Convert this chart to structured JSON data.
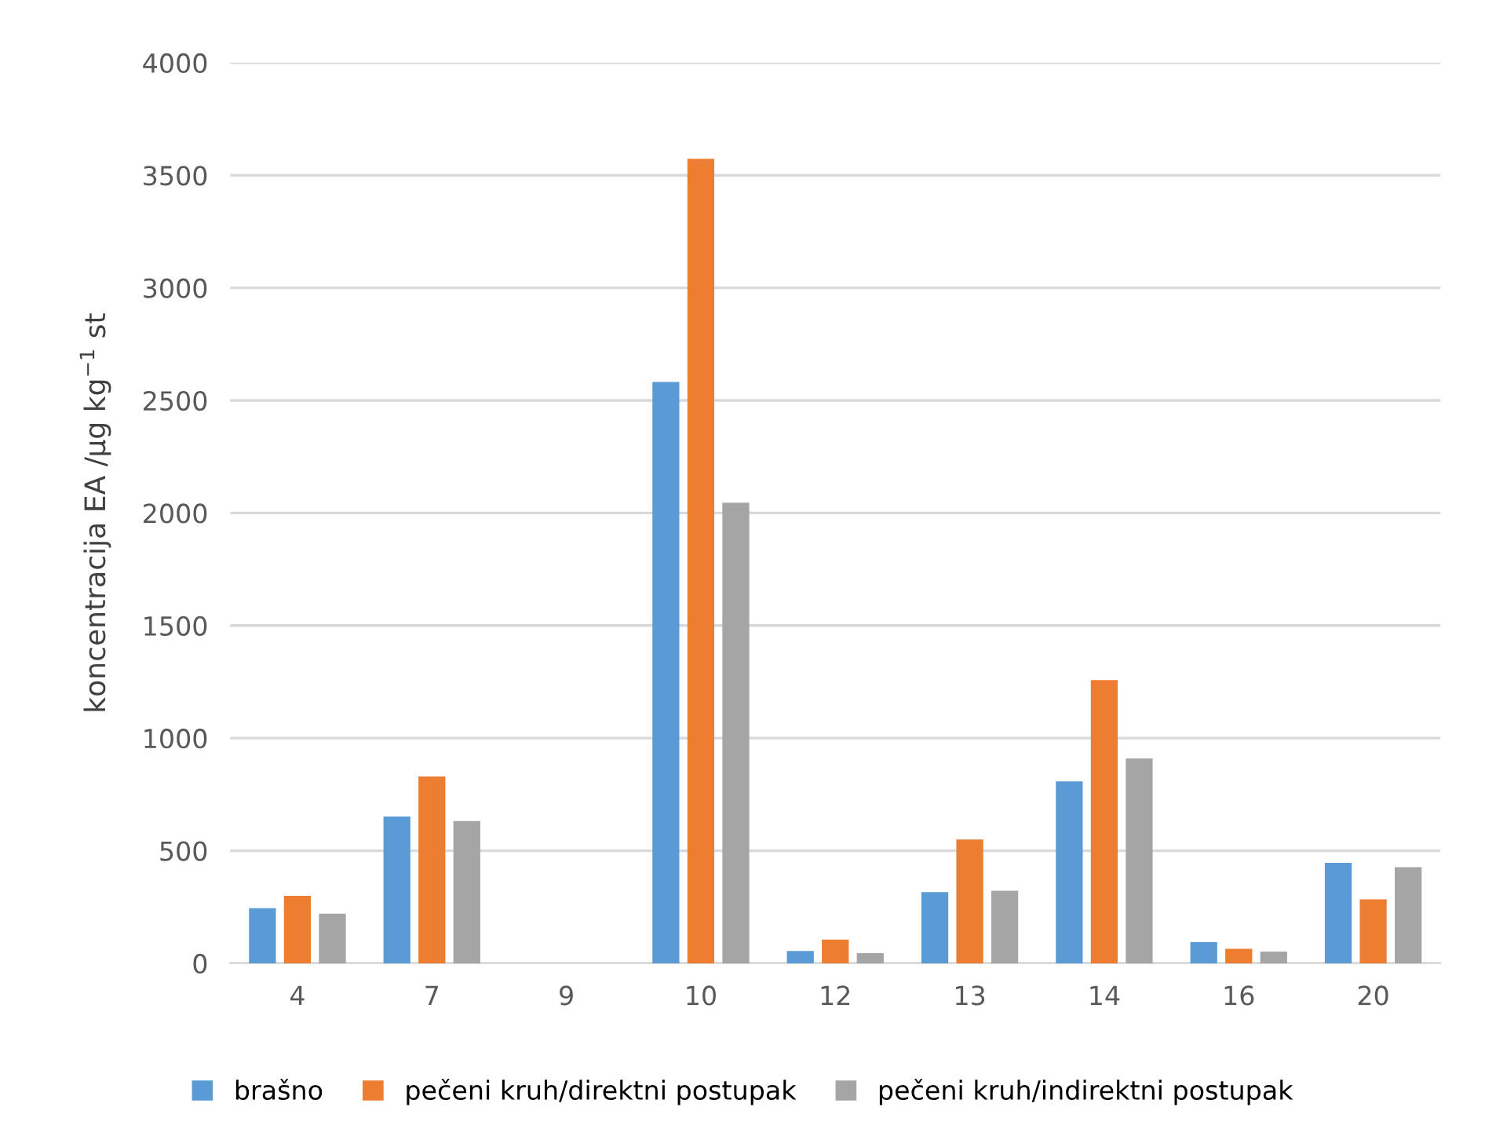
{
  "chart_data": {
    "type": "bar",
    "ylabel": "koncentracija EA /µg kg$^{−1}$ st",
    "categories": [
      "4",
      "7",
      "9",
      "10",
      "12",
      "13",
      "14",
      "16",
      "20"
    ],
    "series": [
      {
        "name": "brašno",
        "color": "#5b9bd5",
        "values": [
          245,
          652,
          null,
          2582,
          55,
          316,
          808,
          94,
          446
        ]
      },
      {
        "name": "pečeni kruh/direktni postupak",
        "color": "#ed7d31",
        "values": [
          300,
          830,
          null,
          3573,
          105,
          550,
          1258,
          64,
          284
        ]
      },
      {
        "name": "pečeni kruh/indirektni postupak",
        "color": "#a5a5a5",
        "values": [
          220,
          632,
          null,
          2046,
          45,
          322,
          910,
          52,
          427
        ]
      }
    ],
    "ylim": [
      0,
      4000
    ],
    "yticks": [
      0,
      500,
      1000,
      1500,
      2000,
      2500,
      3000,
      3500,
      4000
    ],
    "grid": "y",
    "legend": "bottom"
  }
}
